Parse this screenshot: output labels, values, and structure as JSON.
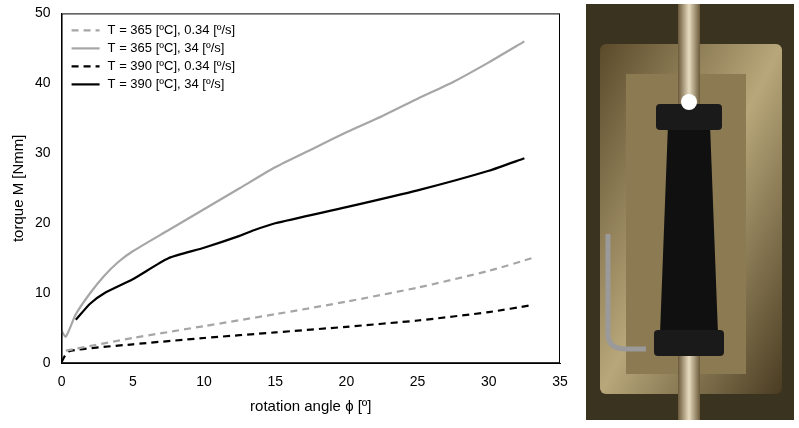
{
  "chart_data": {
    "type": "line",
    "x_label": "rotation angle ϕ [º]",
    "y_label": "torque M [Nmm]",
    "xlim": [
      0,
      35
    ],
    "xticks": [
      0,
      5,
      10,
      15,
      20,
      25,
      30,
      35
    ],
    "ylim": [
      0,
      50
    ],
    "yticks": [
      0,
      10,
      20,
      30,
      40,
      50
    ],
    "grid": false,
    "legend": "upper left",
    "series": [
      {
        "name": "T = 365 [ºC], 0.34 [º/s]",
        "color": "#a6a6a6",
        "line_style": "dashed",
        "x": [
          0.3,
          5,
          10,
          15,
          20,
          25,
          30,
          33
        ],
        "values": [
          1.8,
          3.6,
          5.3,
          7.0,
          8.8,
          10.8,
          13.2,
          15.0
        ]
      },
      {
        "name": "T = 365 [ºC], 34 [º/s]",
        "color": "#a6a6a6",
        "line_style": "solid",
        "x": [
          0,
          0.3,
          1,
          2,
          3,
          4,
          5,
          7.5,
          10,
          12.5,
          15,
          17.5,
          20,
          22.5,
          25,
          27.5,
          30,
          32.5
        ],
        "values": [
          4.6,
          3.8,
          7.0,
          10.0,
          12.5,
          14.5,
          16.0,
          19.0,
          22.0,
          25.0,
          28.0,
          30.5,
          33.0,
          35.3,
          37.8,
          40.2,
          43.0,
          46.0
        ]
      },
      {
        "name": "T = 390 [ºC], 0.34 [º/s]",
        "color": "#000000",
        "line_style": "dashed",
        "x": [
          0,
          0.5,
          5,
          10,
          15,
          20,
          25,
          30,
          33
        ],
        "values": [
          0.2,
          1.7,
          2.7,
          3.6,
          4.4,
          5.2,
          6.1,
          7.3,
          8.3
        ]
      },
      {
        "name": "T = 390 [ºC], 34 [º/s]",
        "color": "#000000",
        "line_style": "solid",
        "x": [
          1,
          2,
          3,
          5,
          7.5,
          10,
          12.5,
          13.5,
          15,
          20,
          25,
          30,
          32.5
        ],
        "values": [
          6.2,
          8.5,
          10.0,
          12.0,
          15.0,
          16.5,
          18.2,
          19.0,
          20.0,
          22.3,
          24.7,
          27.5,
          29.3
        ]
      }
    ]
  }
}
